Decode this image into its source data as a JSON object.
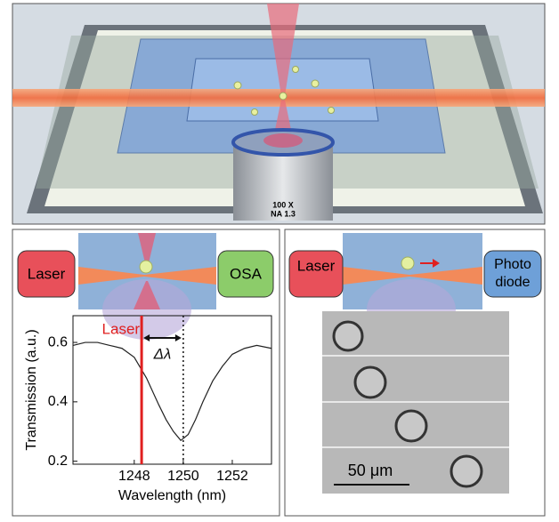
{
  "objective": {
    "magnification": "100 X",
    "aperture": "NA 1.3"
  },
  "left_schematic": {
    "source": "Laser",
    "detector": "OSA"
  },
  "right_schematic": {
    "source": "Laser",
    "detector": [
      "Photo",
      "diode"
    ]
  },
  "scale_bar": "50 μm",
  "chart_data": {
    "type": "line",
    "xlabel": "Wavelength (nm)",
    "ylabel": "Transmission (a.u.)",
    "x": [
      1245.5,
      1246,
      1246.5,
      1247,
      1247.5,
      1248,
      1248.5,
      1249,
      1249.3,
      1249.6,
      1249.9,
      1250.2,
      1250.5,
      1250.8,
      1251.2,
      1251.6,
      1252,
      1252.5,
      1253,
      1253.6
    ],
    "values": [
      0.59,
      0.6,
      0.6,
      0.59,
      0.58,
      0.55,
      0.48,
      0.39,
      0.34,
      0.3,
      0.27,
      0.29,
      0.34,
      0.4,
      0.47,
      0.52,
      0.56,
      0.58,
      0.59,
      0.58
    ],
    "color": "#222222",
    "xlim": [
      1245.5,
      1253.6
    ],
    "ylim": [
      0.19,
      0.69
    ],
    "xticks": [
      1248,
      1250,
      1252
    ],
    "yticks": [
      0.2,
      0.4,
      0.6
    ],
    "vlines": [
      {
        "x": 1248.3,
        "color": "#e02020",
        "style": "solid"
      },
      {
        "x": 1250,
        "color": "#111111",
        "style": "dotted"
      }
    ],
    "annotations": [
      {
        "text": "Laser",
        "color": "#e02020"
      },
      {
        "text": "Δλ",
        "color": "#111111"
      }
    ]
  }
}
